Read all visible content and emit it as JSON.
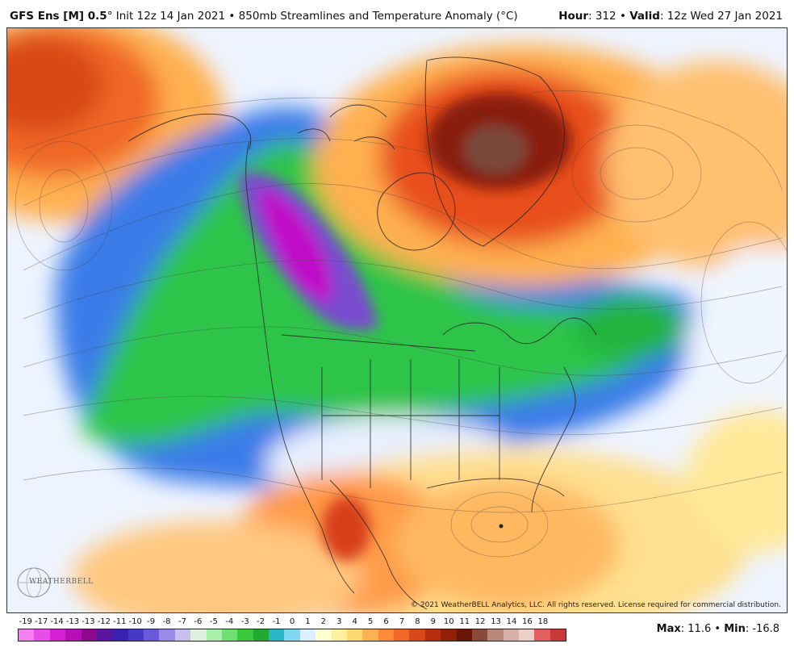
{
  "header": {
    "model": "GFS Ens [M] 0.5",
    "degree": "°",
    "init_text": "Init 12z 14 Jan 2021",
    "bullet": "•",
    "field": "850mb Streamlines and Temperature Anomaly (°C)",
    "hour_label": "Hour",
    "hour_value": ": 312",
    "valid_label": "Valid",
    "valid_value": ": 12z Wed 27 Jan 2021"
  },
  "credit": "© 2021 WeatherBELL Analytics, LLC. All rights reserved. License required for commercial distribution.",
  "logo": {
    "text": "WEATHERBELL"
  },
  "stats": {
    "max_label": "Max",
    "max_value": ": 11.6",
    "bullet": "•",
    "min_label": "Min",
    "min_value": ": -16.8"
  },
  "colors": {
    "cold_core": "#c010c8",
    "purple": "#6a3cb8",
    "blue": "#2a5bd8",
    "green": "#1fb83a",
    "light_green": "#5fd85f",
    "neutral": "#eef4ff",
    "yellow": "#ffe88a",
    "orange": "#f4823c",
    "red": "#d83a1c",
    "darkred": "#7a1406"
  },
  "chart_data": {
    "type": "heatmap",
    "variable": "850mb Temperature Anomaly",
    "unit": "°C",
    "colorbar_ticks": [
      "-19",
      "-17",
      "-14",
      "-13",
      "-13",
      "-12",
      "-11",
      "-10",
      "-9",
      "-8",
      "-7",
      "-6",
      "-5",
      "-4",
      "-3",
      "-2",
      "-1",
      "0",
      "1",
      "2",
      "3",
      "4",
      "5",
      "6",
      "7",
      "8",
      "9",
      "10",
      "11",
      "12",
      "13",
      "14",
      "16",
      "18"
    ],
    "colorbar_colors": [
      "#f57ff0",
      "#e84de8",
      "#d321d3",
      "#b510b5",
      "#8c0a8c",
      "#5a14a0",
      "#3a20b0",
      "#4838c8",
      "#6a5ad8",
      "#9a8ae8",
      "#c8c0f0",
      "#e0f0e0",
      "#a8f0a8",
      "#6fe06f",
      "#3cc83c",
      "#20a830",
      "#2ab8c8",
      "#80d8f0",
      "#d8f0ff",
      "#ffffd0",
      "#fff0a0",
      "#ffd870",
      "#ffb050",
      "#ff8a38",
      "#f06828",
      "#d84818",
      "#b82c10",
      "#902008",
      "#6a1408",
      "#8a4a3a",
      "#b88878",
      "#d8b0a8",
      "#ecd0c8",
      "#e06060",
      "#c83838"
    ],
    "max": 11.6,
    "min": -16.8
  }
}
